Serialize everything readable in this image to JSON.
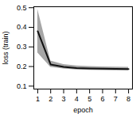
{
  "chart_data": {
    "type": "line",
    "xlabel": "epoch",
    "ylabel": "loss (train)",
    "x": [
      1,
      2,
      3,
      4,
      5,
      6,
      7,
      8
    ],
    "values": [
      0.38,
      0.21,
      0.198,
      0.192,
      0.19,
      0.189,
      0.188,
      0.187
    ],
    "color": "#111111",
    "band": {
      "lower": [
        0.27,
        0.196,
        0.188,
        0.183,
        0.181,
        0.18,
        0.179,
        0.179
      ],
      "upper": [
        0.492,
        0.228,
        0.21,
        0.203,
        0.2,
        0.198,
        0.197,
        0.196
      ],
      "color": "#888888"
    },
    "xlim": [
      0.7,
      8.3
    ],
    "ylim": [
      0.085,
      0.505
    ],
    "xticks": [
      1,
      2,
      3,
      4,
      5,
      6,
      7,
      8
    ],
    "yticks": [
      0.1,
      0.2,
      0.3,
      0.4,
      0.5
    ],
    "grid": false
  }
}
